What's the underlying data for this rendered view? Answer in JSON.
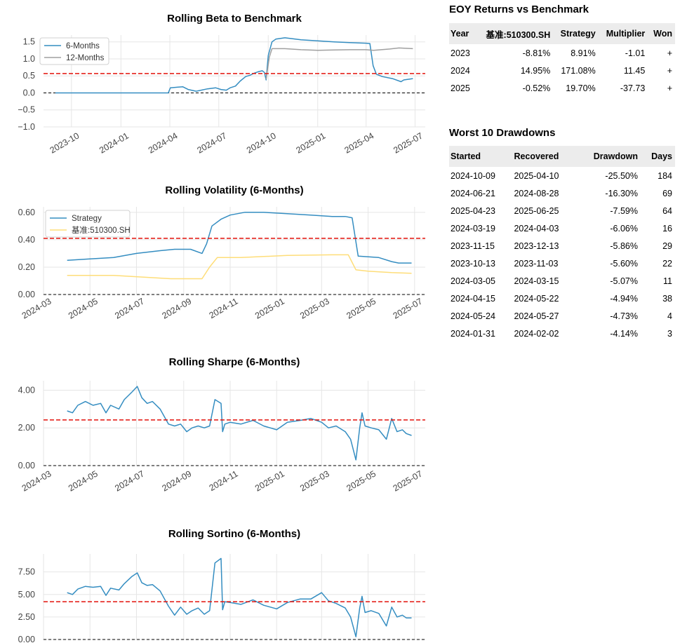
{
  "chart_data": [
    {
      "type": "line",
      "title": "Rolling Beta to Benchmark",
      "ylim": [
        -1.0,
        1.7
      ],
      "yticks": [
        "1.5",
        "1.0",
        "0.5",
        "0.0",
        "−0.5",
        "−1.0"
      ],
      "ytick_values": [
        1.5,
        1.0,
        0.5,
        0.0,
        -0.5,
        -1.0
      ],
      "xticks": [
        "2023-10",
        "2024-01",
        "2024-04",
        "2024-07",
        "2024-10",
        "2025-01",
        "2025-04",
        "2025-07"
      ],
      "xlim": [
        "2023-08-10",
        "2025-07-20"
      ],
      "grid": true,
      "legend_position": "upper-left",
      "mean_line": 0.57,
      "series": [
        {
          "name": "6-Months",
          "color": "#348dc1",
          "x": [
            "2023-09-01",
            "2023-10-01",
            "2024-01-01",
            "2024-03-29",
            "2024-04-02",
            "2024-04-25",
            "2024-05-05",
            "2024-05-20",
            "2024-06-10",
            "2024-06-25",
            "2024-07-05",
            "2024-07-15",
            "2024-07-22",
            "2024-08-01",
            "2024-08-10",
            "2024-08-20",
            "2024-08-28",
            "2024-09-05",
            "2024-09-12",
            "2024-09-20",
            "2024-09-24",
            "2024-09-27",
            "2024-10-01",
            "2024-10-08",
            "2024-10-15",
            "2024-11-01",
            "2024-12-01",
            "2025-01-01",
            "2025-02-01",
            "2025-03-01",
            "2025-04-01",
            "2025-04-08",
            "2025-04-14",
            "2025-04-20",
            "2025-05-01",
            "2025-05-20",
            "2025-06-05",
            "2025-06-10",
            "2025-06-27"
          ],
          "y": [
            0.0,
            0.0,
            0.0,
            0.0,
            0.15,
            0.18,
            0.1,
            0.05,
            0.12,
            0.15,
            0.1,
            0.08,
            0.15,
            0.2,
            0.35,
            0.48,
            0.52,
            0.58,
            0.62,
            0.65,
            0.6,
            0.38,
            1.1,
            1.5,
            1.58,
            1.62,
            1.56,
            1.53,
            1.5,
            1.48,
            1.46,
            1.45,
            0.8,
            0.55,
            0.48,
            0.42,
            0.33,
            0.38,
            0.42
          ]
        },
        {
          "name": "12-Months",
          "color": "#a0a0a0",
          "x": [
            "2024-09-27",
            "2024-10-03",
            "2024-10-08",
            "2024-11-01",
            "2024-12-01",
            "2025-01-01",
            "2025-02-01",
            "2025-03-01",
            "2025-04-01",
            "2025-04-15",
            "2025-05-15",
            "2025-06-01",
            "2025-06-27"
          ],
          "y": [
            0.4,
            1.05,
            1.3,
            1.3,
            1.27,
            1.25,
            1.26,
            1.27,
            1.27,
            1.25,
            1.29,
            1.32,
            1.3
          ]
        }
      ]
    },
    {
      "type": "line",
      "title": "Rolling Volatility (6-Months)",
      "ylim": [
        0.0,
        0.64
      ],
      "yticks": [
        "0.60",
        "0.40",
        "0.20",
        "0.00"
      ],
      "ytick_values": [
        0.6,
        0.4,
        0.2,
        0.0
      ],
      "xticks": [
        "2024-03",
        "2024-05",
        "2024-07",
        "2024-09",
        "2024-11",
        "2025-01",
        "2025-03",
        "2025-05",
        "2025-07"
      ],
      "xlim": [
        "2024-03-01",
        "2025-07-15"
      ],
      "grid": true,
      "legend_position": "upper-left",
      "mean_line": 0.41,
      "series": [
        {
          "name": "Strategy",
          "color": "#348dc1",
          "x": [
            "2024-04-01",
            "2024-05-01",
            "2024-06-01",
            "2024-07-01",
            "2024-08-01",
            "2024-08-20",
            "2024-09-10",
            "2024-09-25",
            "2024-10-01",
            "2024-10-08",
            "2024-10-20",
            "2024-11-01",
            "2024-11-20",
            "2024-12-15",
            "2025-01-15",
            "2025-02-15",
            "2025-03-15",
            "2025-04-01",
            "2025-04-10",
            "2025-04-18",
            "2025-05-15",
            "2025-06-01",
            "2025-06-10",
            "2025-06-27"
          ],
          "y": [
            0.25,
            0.26,
            0.27,
            0.3,
            0.32,
            0.33,
            0.33,
            0.3,
            0.37,
            0.5,
            0.55,
            0.58,
            0.6,
            0.6,
            0.59,
            0.58,
            0.57,
            0.57,
            0.56,
            0.28,
            0.27,
            0.24,
            0.23,
            0.23
          ]
        },
        {
          "name": "基准:510300.SH",
          "color": "#fedd78",
          "x": [
            "2024-04-01",
            "2024-06-01",
            "2024-08-15",
            "2024-09-25",
            "2024-10-05",
            "2024-10-15",
            "2024-11-15",
            "2025-01-15",
            "2025-03-15",
            "2025-04-05",
            "2025-04-15",
            "2025-05-01",
            "2025-06-01",
            "2025-06-27"
          ],
          "y": [
            0.14,
            0.14,
            0.115,
            0.115,
            0.2,
            0.27,
            0.27,
            0.285,
            0.29,
            0.29,
            0.18,
            0.17,
            0.16,
            0.155
          ]
        }
      ]
    },
    {
      "type": "line",
      "title": "Rolling Sharpe (6-Months)",
      "ylim": [
        0.0,
        4.5
      ],
      "yticks": [
        "4.00",
        "2.00",
        "0.00"
      ],
      "ytick_values": [
        4.0,
        2.0,
        0.0
      ],
      "xticks": [
        "2024-03",
        "2024-05",
        "2024-07",
        "2024-09",
        "2024-11",
        "2025-01",
        "2025-03",
        "2025-05",
        "2025-07"
      ],
      "xlim": [
        "2024-03-01",
        "2025-07-15"
      ],
      "grid": true,
      "mean_line": 2.42,
      "series": [
        {
          "name": "Strategy",
          "color": "#348dc1",
          "x": [
            "2024-04-01",
            "2024-04-08",
            "2024-04-15",
            "2024-04-25",
            "2024-05-05",
            "2024-05-15",
            "2024-05-22",
            "2024-05-28",
            "2024-06-08",
            "2024-06-15",
            "2024-06-25",
            "2024-07-02",
            "2024-07-08",
            "2024-07-15",
            "2024-07-22",
            "2024-08-01",
            "2024-08-12",
            "2024-08-20",
            "2024-08-28",
            "2024-09-05",
            "2024-09-12",
            "2024-09-20",
            "2024-09-28",
            "2024-10-05",
            "2024-10-12",
            "2024-10-20",
            "2024-10-22",
            "2024-10-25",
            "2024-11-01",
            "2024-11-15",
            "2024-12-01",
            "2024-12-15",
            "2025-01-01",
            "2025-01-15",
            "2025-02-01",
            "2025-02-15",
            "2025-03-01",
            "2025-03-10",
            "2025-03-20",
            "2025-04-01",
            "2025-04-08",
            "2025-04-15",
            "2025-04-20",
            "2025-04-23",
            "2025-04-27",
            "2025-05-05",
            "2025-05-15",
            "2025-05-25",
            "2025-06-01",
            "2025-06-08",
            "2025-06-15",
            "2025-06-20",
            "2025-06-27"
          ],
          "y": [
            2.9,
            2.8,
            3.2,
            3.4,
            3.2,
            3.3,
            2.8,
            3.2,
            3.0,
            3.5,
            3.9,
            4.2,
            3.6,
            3.3,
            3.4,
            3.0,
            2.2,
            2.1,
            2.2,
            1.8,
            2.0,
            2.1,
            2.0,
            2.1,
            3.5,
            3.3,
            1.8,
            2.2,
            2.3,
            2.2,
            2.4,
            2.1,
            1.9,
            2.3,
            2.4,
            2.5,
            2.3,
            2.0,
            2.1,
            1.8,
            1.4,
            0.3,
            2.0,
            2.8,
            2.1,
            2.0,
            1.9,
            1.4,
            2.5,
            1.8,
            1.9,
            1.7,
            1.6
          ]
        }
      ]
    },
    {
      "type": "line",
      "title": "Rolling Sortino (6-Months)",
      "ylim": [
        0.0,
        9.5
      ],
      "yticks": [
        "7.50",
        "5.00",
        "2.50",
        "0.00"
      ],
      "ytick_values": [
        7.5,
        5.0,
        2.5,
        0.0
      ],
      "xticks": [],
      "xlim": [
        "2024-03-01",
        "2025-07-15"
      ],
      "grid": true,
      "mean_line": 4.2,
      "series": [
        {
          "name": "Strategy",
          "color": "#348dc1",
          "x": [
            "2024-04-01",
            "2024-04-08",
            "2024-04-15",
            "2024-04-25",
            "2024-05-05",
            "2024-05-15",
            "2024-05-22",
            "2024-05-28",
            "2024-06-08",
            "2024-06-15",
            "2024-06-25",
            "2024-07-02",
            "2024-07-08",
            "2024-07-15",
            "2024-07-22",
            "2024-08-01",
            "2024-08-12",
            "2024-08-20",
            "2024-08-28",
            "2024-09-05",
            "2024-09-12",
            "2024-09-20",
            "2024-09-28",
            "2024-10-05",
            "2024-10-12",
            "2024-10-20",
            "2024-10-22",
            "2024-10-25",
            "2024-11-01",
            "2024-11-15",
            "2024-12-01",
            "2024-12-15",
            "2025-01-01",
            "2025-01-15",
            "2025-02-01",
            "2025-02-15",
            "2025-03-01",
            "2025-03-10",
            "2025-03-20",
            "2025-04-01",
            "2025-04-08",
            "2025-04-15",
            "2025-04-20",
            "2025-04-23",
            "2025-04-27",
            "2025-05-05",
            "2025-05-15",
            "2025-05-25",
            "2025-06-01",
            "2025-06-08",
            "2025-06-15",
            "2025-06-20",
            "2025-06-27"
          ],
          "y": [
            5.2,
            5.0,
            5.6,
            5.9,
            5.8,
            5.9,
            4.9,
            5.7,
            5.5,
            6.2,
            7.0,
            7.4,
            6.3,
            6.0,
            6.1,
            5.4,
            3.7,
            2.7,
            3.6,
            2.8,
            3.2,
            3.5,
            2.8,
            3.2,
            8.5,
            9.0,
            3.3,
            4.2,
            4.1,
            3.9,
            4.4,
            3.8,
            3.4,
            4.1,
            4.5,
            4.5,
            5.2,
            4.3,
            4.0,
            3.5,
            2.5,
            0.3,
            3.5,
            4.8,
            3.0,
            3.2,
            2.9,
            1.5,
            3.6,
            2.5,
            2.7,
            2.4,
            2.4
          ]
        }
      ]
    }
  ],
  "eoy": {
    "title": "EOY Returns vs Benchmark",
    "headers": [
      "Year",
      "基准:510300.SH",
      "Strategy",
      "Multiplier",
      "Won"
    ],
    "rows": [
      [
        "2023",
        "-8.81%",
        "8.91%",
        "-1.01",
        "+"
      ],
      [
        "2024",
        "14.95%",
        "171.08%",
        "11.45",
        "+"
      ],
      [
        "2025",
        "-0.52%",
        "19.70%",
        "-37.73",
        "+"
      ]
    ]
  },
  "drawdowns": {
    "title": "Worst 10 Drawdowns",
    "headers": [
      "Started",
      "Recovered",
      "Drawdown",
      "Days"
    ],
    "rows": [
      [
        "2024-10-09",
        "2025-04-10",
        "-25.50%",
        "184"
      ],
      [
        "2024-06-21",
        "2024-08-28",
        "-16.30%",
        "69"
      ],
      [
        "2025-04-23",
        "2025-06-25",
        "-7.59%",
        "64"
      ],
      [
        "2024-03-19",
        "2024-04-03",
        "-6.06%",
        "16"
      ],
      [
        "2023-11-15",
        "2023-12-13",
        "-5.86%",
        "29"
      ],
      [
        "2023-10-13",
        "2023-11-03",
        "-5.60%",
        "22"
      ],
      [
        "2024-03-05",
        "2024-03-15",
        "-5.07%",
        "11"
      ],
      [
        "2024-04-15",
        "2024-05-22",
        "-4.94%",
        "38"
      ],
      [
        "2024-05-24",
        "2024-05-27",
        "-4.73%",
        "4"
      ],
      [
        "2024-01-31",
        "2024-02-02",
        "-4.14%",
        "3"
      ]
    ]
  }
}
